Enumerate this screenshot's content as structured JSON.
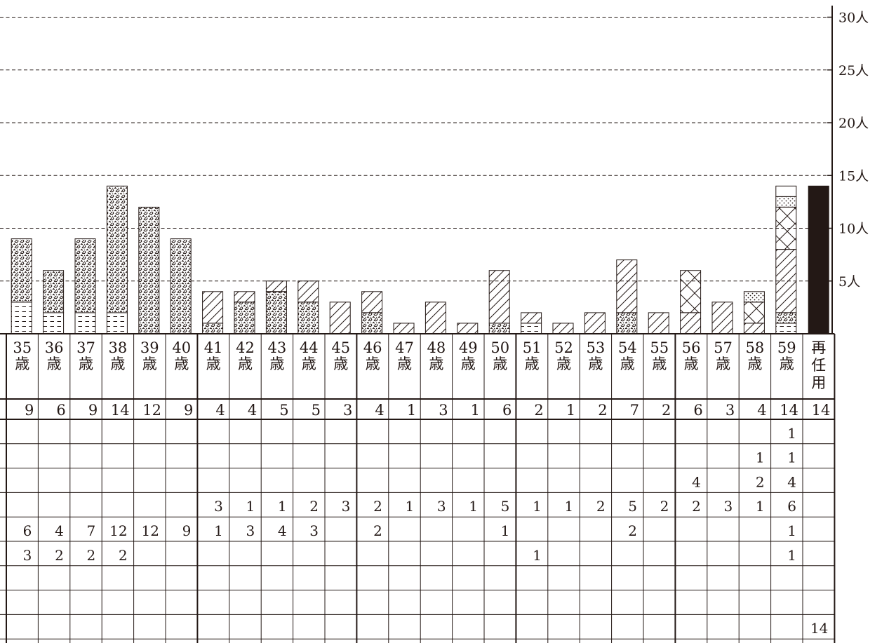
{
  "chart_data": {
    "type": "bar",
    "stacked": true,
    "ylim": [
      0,
      30
    ],
    "grid": true,
    "y_axis": {
      "position": "right",
      "ticks": [
        {
          "value": 5,
          "label": "5人"
        },
        {
          "value": 10,
          "label": "10人"
        },
        {
          "value": 15,
          "label": "15人"
        },
        {
          "value": 20,
          "label": "20人"
        },
        {
          "value": 25,
          "label": "25人"
        },
        {
          "value": 30,
          "label": "30人"
        }
      ]
    },
    "categories": [
      {
        "num": "35",
        "unit": "歳"
      },
      {
        "num": "36",
        "unit": "歳"
      },
      {
        "num": "37",
        "unit": "歳"
      },
      {
        "num": "38",
        "unit": "歳"
      },
      {
        "num": "39",
        "unit": "歳"
      },
      {
        "num": "40",
        "unit": "歳"
      },
      {
        "num": "41",
        "unit": "歳"
      },
      {
        "num": "42",
        "unit": "歳"
      },
      {
        "num": "43",
        "unit": "歳"
      },
      {
        "num": "44",
        "unit": "歳"
      },
      {
        "num": "45",
        "unit": "歳"
      },
      {
        "num": "46",
        "unit": "歳"
      },
      {
        "num": "47",
        "unit": "歳"
      },
      {
        "num": "48",
        "unit": "歳"
      },
      {
        "num": "49",
        "unit": "歳"
      },
      {
        "num": "50",
        "unit": "歳"
      },
      {
        "num": "51",
        "unit": "歳"
      },
      {
        "num": "52",
        "unit": "歳"
      },
      {
        "num": "53",
        "unit": "歳"
      },
      {
        "num": "54",
        "unit": "歳"
      },
      {
        "num": "55",
        "unit": "歳"
      },
      {
        "num": "56",
        "unit": "歳"
      },
      {
        "num": "57",
        "unit": "歳"
      },
      {
        "num": "58",
        "unit": "歳"
      },
      {
        "num": "59",
        "unit": "歳"
      },
      {
        "num": "再任用",
        "unit": ""
      }
    ],
    "totals": [
      9,
      6,
      9,
      14,
      12,
      9,
      4,
      4,
      5,
      5,
      3,
      4,
      1,
      3,
      1,
      6,
      2,
      1,
      2,
      7,
      2,
      6,
      3,
      4,
      14,
      14
    ],
    "series": [
      {
        "pattern": "none",
        "values": [
          null,
          null,
          null,
          null,
          null,
          null,
          null,
          null,
          null,
          null,
          null,
          null,
          null,
          null,
          null,
          null,
          null,
          null,
          null,
          null,
          null,
          null,
          null,
          null,
          null,
          14
        ]
      },
      {
        "pattern": "blank",
        "values": [
          null,
          null,
          null,
          null,
          null,
          null,
          null,
          null,
          null,
          null,
          null,
          null,
          null,
          null,
          null,
          null,
          null,
          null,
          null,
          null,
          null,
          null,
          null,
          null,
          null,
          null
        ]
      },
      {
        "pattern": "blank",
        "values": [
          null,
          null,
          null,
          null,
          null,
          null,
          null,
          null,
          null,
          null,
          null,
          null,
          null,
          null,
          null,
          null,
          null,
          null,
          null,
          null,
          null,
          null,
          null,
          null,
          null,
          null
        ]
      },
      {
        "pattern": "dashes",
        "values": [
          3,
          2,
          2,
          2,
          null,
          null,
          null,
          null,
          null,
          null,
          null,
          null,
          null,
          null,
          null,
          null,
          1,
          null,
          null,
          null,
          null,
          null,
          null,
          null,
          1,
          null
        ]
      },
      {
        "pattern": "speckle",
        "values": [
          6,
          4,
          7,
          12,
          12,
          9,
          1,
          3,
          4,
          3,
          null,
          2,
          null,
          null,
          null,
          1,
          null,
          null,
          null,
          2,
          null,
          null,
          null,
          null,
          1,
          null
        ]
      },
      {
        "pattern": "diagonal",
        "values": [
          null,
          null,
          null,
          null,
          null,
          null,
          3,
          1,
          1,
          2,
          3,
          2,
          1,
          3,
          1,
          5,
          1,
          1,
          2,
          5,
          2,
          2,
          3,
          1,
          6,
          null
        ]
      },
      {
        "pattern": "crosshatch",
        "values": [
          null,
          null,
          null,
          null,
          null,
          null,
          null,
          null,
          null,
          null,
          null,
          null,
          null,
          null,
          null,
          null,
          null,
          null,
          null,
          null,
          null,
          4,
          null,
          2,
          4,
          null
        ]
      },
      {
        "pattern": "dots",
        "values": [
          null,
          null,
          null,
          null,
          null,
          null,
          null,
          null,
          null,
          null,
          null,
          null,
          null,
          null,
          null,
          null,
          null,
          null,
          null,
          null,
          null,
          null,
          null,
          1,
          1,
          null
        ]
      },
      {
        "pattern": "blank",
        "values": [
          null,
          null,
          null,
          null,
          null,
          null,
          null,
          null,
          null,
          null,
          null,
          null,
          null,
          null,
          null,
          null,
          null,
          null,
          null,
          null,
          null,
          null,
          null,
          null,
          1,
          null
        ]
      }
    ],
    "table_rows_top_to_bottom": [
      8,
      7,
      6,
      5,
      4,
      3,
      2,
      1,
      0
    ]
  }
}
